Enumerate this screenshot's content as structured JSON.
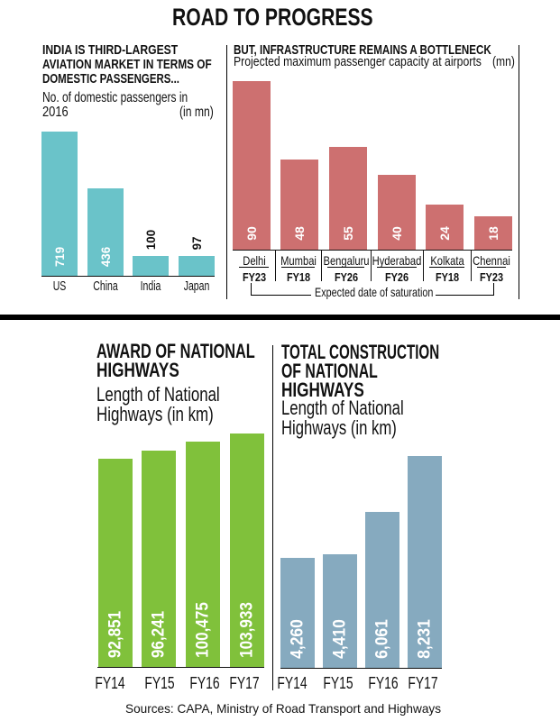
{
  "title": "ROAD TO PROGRESS",
  "chart_data": [
    {
      "type": "bar",
      "title_lines": [
        "INDIA IS THIRD-LARGEST",
        "AVIATION MARKET IN TERMS OF",
        "DOMESTIC PASSENGERS..."
      ],
      "subtitle_lines": [
        "No. of domestic passengers in",
        "2016"
      ],
      "unit": "(in mn)",
      "xlabel": "",
      "ylabel": "",
      "categories": [
        "US",
        "China",
        "India",
        "Japan"
      ],
      "values": [
        719,
        436,
        100,
        97
      ],
      "value_labels": [
        "719",
        "436",
        "100",
        "97"
      ],
      "ylim": [
        0,
        719
      ],
      "grid": false,
      "legend": "none",
      "color": "#6AC3C9"
    },
    {
      "type": "bar",
      "title_lines": [
        "BUT, INFRASTRUCTURE REMAINS A BOTTLENECK"
      ],
      "subtitle_lines": [
        "Projected maximum passenger capacity at airports"
      ],
      "unit": "(mn)",
      "xlabel": "",
      "ylabel": "",
      "categories": [
        "Delhi",
        "Mumbai",
        "Bengaluru",
        "Hyderabad",
        "Kolkata",
        "Chennai"
      ],
      "values": [
        90,
        48,
        55,
        40,
        24,
        18
      ],
      "value_labels": [
        "90",
        "48",
        "55",
        "40",
        "24",
        "18"
      ],
      "saturation_dates": [
        "FY23",
        "FY18",
        "FY26",
        "FY26",
        "FY18",
        "FY23"
      ],
      "annotation": "Expected date of saturation",
      "ylim": [
        0,
        90
      ],
      "grid": false,
      "legend": "none",
      "color": "#CD7070"
    },
    {
      "type": "bar",
      "title_lines": [
        "AWARD OF NATIONAL",
        "HIGHWAYS"
      ],
      "subtitle_lines": [
        "Length of National",
        "Highways (in km)"
      ],
      "xlabel": "",
      "ylabel": "",
      "categories": [
        "FY14",
        "FY15",
        "FY16",
        "FY17"
      ],
      "values": [
        92851,
        96241,
        100475,
        103933
      ],
      "value_labels": [
        "92,851",
        "96,241",
        "100,475",
        "103,933"
      ],
      "ylim": [
        0,
        103933
      ],
      "grid": false,
      "legend": "none",
      "color": "#80C13B"
    },
    {
      "type": "bar",
      "title_lines": [
        "TOTAL CONSTRUCTION",
        "OF NATIONAL",
        "HIGHWAYS"
      ],
      "subtitle_lines": [
        "Length of National",
        "Highways (in km)"
      ],
      "xlabel": "",
      "ylabel": "",
      "categories": [
        "FY14",
        "FY15",
        "FY16",
        "FY17"
      ],
      "values": [
        4260,
        4410,
        6061,
        8231
      ],
      "value_labels": [
        "4,260",
        "4,410",
        "6,061",
        "8,231"
      ],
      "ylim": [
        0,
        8231
      ],
      "grid": false,
      "legend": "none",
      "color": "#86AABF"
    }
  ],
  "sources": "Sources: CAPA, Ministry of Road Transport and Highways"
}
